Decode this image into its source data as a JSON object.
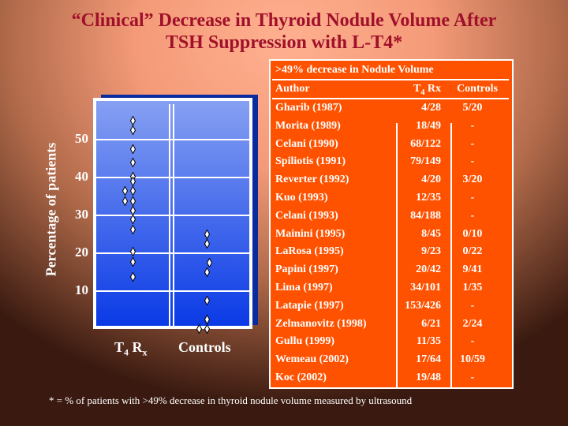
{
  "title": {
    "line1": "“Clinical” Decrease in Thyroid Nodule Volume After",
    "line2": "TSH Suppression with L-T4*"
  },
  "table": {
    "caption": ">49% decrease in Nodule Volume",
    "headers": {
      "author": "Author",
      "t4_main": "T",
      "t4_sub": "4",
      "t4_rest": " Rx",
      "controls": "Controls"
    },
    "rows": [
      {
        "author": "Gharib (1987)",
        "t4": "4/28",
        "controls": "5/20"
      },
      {
        "author": "Morita (1989)",
        "t4": "18/49",
        "controls": "-"
      },
      {
        "author": "Celani (1990)",
        "t4": "68/122",
        "controls": "-"
      },
      {
        "author": "Spiliotis (1991)",
        "t4": "79/149",
        "controls": "-"
      },
      {
        "author": "Reverter (1992)",
        "t4": "4/20",
        "controls": "3/20"
      },
      {
        "author": "Kuo (1993)",
        "t4": "12/35",
        "controls": "-"
      },
      {
        "author": "Celani (1993)",
        "t4": "84/188",
        "controls": "-"
      },
      {
        "author": "Mainini (1995)",
        "t4": "8/45",
        "controls": "0/10"
      },
      {
        "author": "LaRosa (1995)",
        "t4": "9/23",
        "controls": "0/22"
      },
      {
        "author": "Papini (1997)",
        "t4": "20/42",
        "controls": "9/41"
      },
      {
        "author": "Lima (1997)",
        "t4": "34/101",
        "controls": "1/35"
      },
      {
        "author": "Latapie (1997)",
        "t4": "153/426",
        "controls": "-"
      },
      {
        "author": "Zelmanovitz (1998)",
        "t4": "6/21",
        "controls": "2/24"
      },
      {
        "author": "Gullu (1999)",
        "t4": "11/35",
        "controls": "-"
      },
      {
        "author": "Wemeau (2002)",
        "t4": "17/64",
        "controls": "10/59"
      },
      {
        "author": "Koc (2002)",
        "t4": "19/48",
        "controls": "-"
      }
    ]
  },
  "footnote": "* =  % of patients with >49% decrease in thyroid nodule volume measured by ultrasound",
  "chart_data": {
    "type": "scatter",
    "ylabel": "Percentage of patients",
    "ylim": [
      0,
      60
    ],
    "yticks": [
      "10",
      "20",
      "30",
      "40",
      "50"
    ],
    "categories": [
      "T4 Rx",
      "Controls"
    ],
    "x_labels": {
      "t4_main": "T",
      "t4_sub": "4",
      "t4_r": " R",
      "t4_rsub": "x",
      "controls": "Controls"
    },
    "series": [
      {
        "name": "T4 Rx",
        "values": [
          55.1,
          52.4,
          47.6,
          43.9,
          40.2,
          39,
          36.4,
          33.8,
          31.3,
          28.9,
          26.3,
          20.4,
          17.8,
          13.7,
          36.4,
          33.8
        ],
        "offset": [
          0,
          0,
          0,
          0,
          0,
          0,
          0,
          0,
          0,
          0,
          0,
          0,
          0,
          0,
          -1,
          -1
        ]
      },
      {
        "name": "Controls",
        "values": [
          25,
          22.4,
          17.6,
          14.9,
          7.4,
          2.4,
          0,
          0
        ],
        "offset": [
          0,
          0,
          0.3,
          0,
          0,
          0,
          0,
          -1
        ]
      }
    ]
  },
  "colors": {
    "title": "#a0102a",
    "table_bg": "#ff5200",
    "plot_top": "#86a0f2",
    "plot_bottom": "#0a3ae6"
  }
}
